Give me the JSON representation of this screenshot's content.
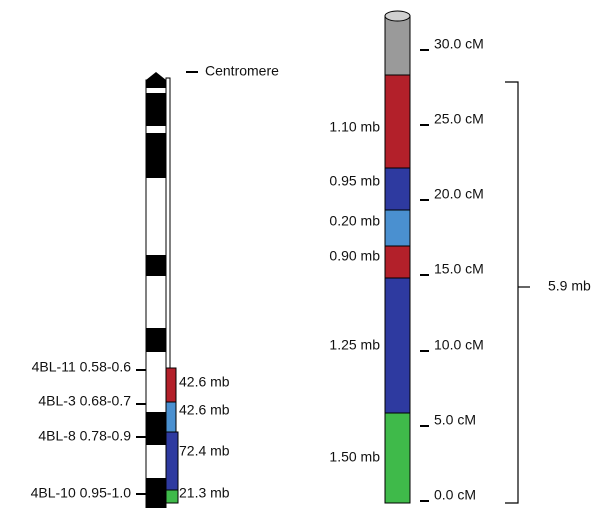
{
  "centromere_label": "Centromere",
  "left_loci": [
    {
      "label": "4BL-11 0.58-0.6",
      "size": "42.6 mb"
    },
    {
      "label": "4BL-3 0.68-0.7",
      "size": "42.6 mb"
    },
    {
      "label": "4BL-8 0.78-0.9",
      "size": "72.4 mb"
    },
    {
      "label": "4BL-10 0.95-1.0",
      "size": "21.3 mb"
    }
  ],
  "right_segments": [
    "1.10 mb",
    "0.95 mb",
    "0.20 mb",
    "0.90 mb",
    "1.25 mb",
    "1.50 mb"
  ],
  "scale_ticks": [
    "30.0 cM",
    "25.0 cM",
    "20.0 cM",
    "15.0 cM",
    "10.0 cM",
    "5.0 cM",
    "0.0 cM"
  ],
  "total": "5.9 mb"
}
